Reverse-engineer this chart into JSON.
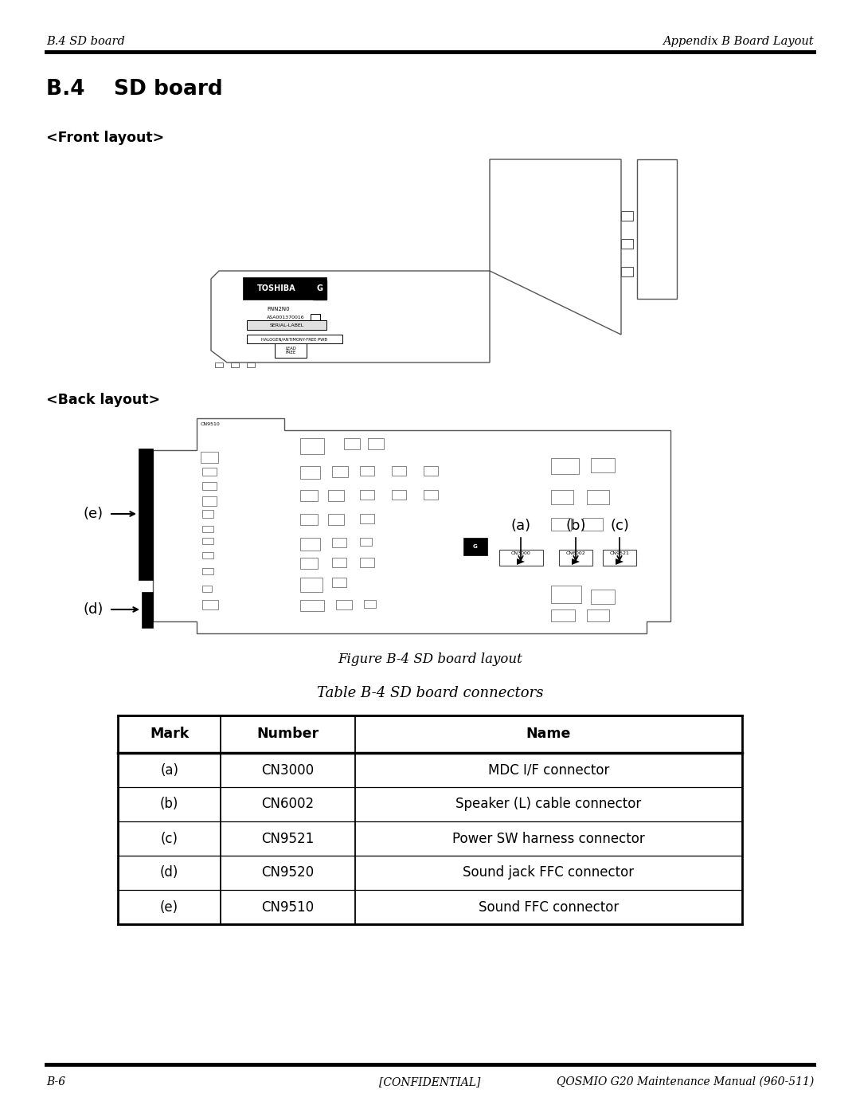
{
  "page_title_left": "B.4 SD board",
  "page_title_right": "Appendix B Board Layout",
  "section_title": "B.4    SD board",
  "front_label": "<Front layout>",
  "back_label": "<Back layout>",
  "figure_caption": "Figure B-4 SD board layout",
  "table_caption": "Table B-4 SD board connectors",
  "table_headers": [
    "Mark",
    "Number",
    "Name"
  ],
  "table_rows": [
    [
      "(a)",
      "CN3000",
      "MDC I/F connector"
    ],
    [
      "(b)",
      "CN6002",
      "Speaker (L) cable connector"
    ],
    [
      "(c)",
      "CN9521",
      "Power SW harness connector"
    ],
    [
      "(d)",
      "CN9520",
      "Sound jack FFC connector"
    ],
    [
      "(e)",
      "CN9510",
      "Sound FFC connector"
    ]
  ],
  "footer_left": "B-6",
  "footer_center": "[CONFIDENTIAL]",
  "footer_right": "QOSMIO G20 Maintenance Manual (960-511)",
  "bg_color": "#ffffff",
  "text_color": "#000000"
}
